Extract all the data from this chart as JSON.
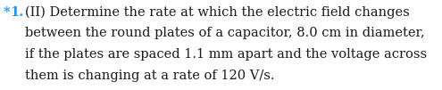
{
  "number_star": "*",
  "number_1": "1.",
  "number_color": "#2196F3",
  "text_color": "#1a1a1a",
  "background_color": "#ffffff",
  "line1_prefix": " (II) Determine the rate at which the electric field changes",
  "line2": "    between the round plates of a capacitor, 8.0 cm in diameter,",
  "line3": "    if the plates are spaced 1.1 mm apart and the voltage across",
  "line4": "    them is changing at a rate of 120 V/s.",
  "fontsize": 10.5,
  "font_family": "DejaVu Serif"
}
